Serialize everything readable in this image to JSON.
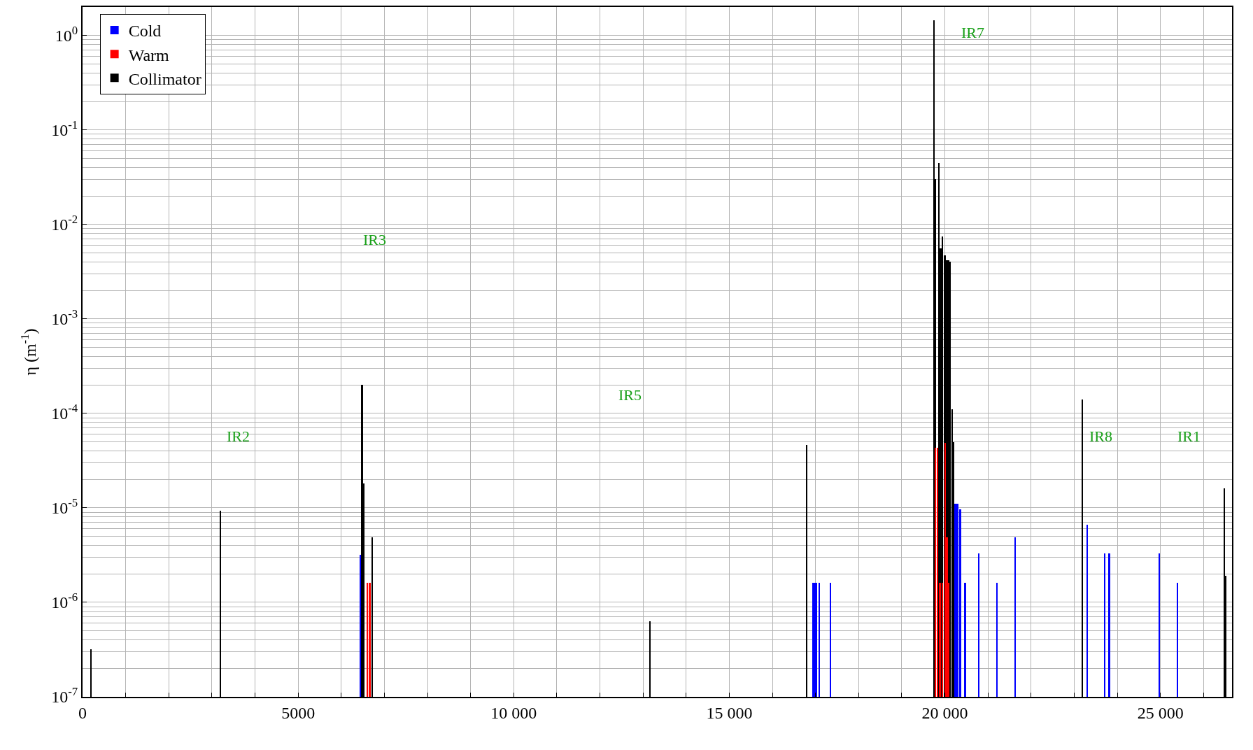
{
  "chart_data": {
    "type": "bar",
    "ylabel": "η (m$^{-1}$)",
    "log": "y",
    "grid": true,
    "legend": "top left",
    "xlim": [
      0,
      26659
    ],
    "ylim": [
      1e-07,
      2
    ],
    "xticks": [
      0,
      {
        "value": 1000,
        "label": null
      },
      {
        "value": 2000,
        "label": null
      },
      {
        "value": 3000,
        "label": null
      },
      {
        "value": 4000,
        "label": null
      },
      5000,
      {
        "value": 6000,
        "label": null
      },
      {
        "value": 7000,
        "label": null
      },
      {
        "value": 8000,
        "label": null
      },
      {
        "value": 9000,
        "label": null
      },
      {
        "value": 10000,
        "label": "10 000"
      },
      {
        "value": 11000,
        "label": null
      },
      {
        "value": 12000,
        "label": null
      },
      {
        "value": 13000,
        "label": null
      },
      {
        "value": 14000,
        "label": null
      },
      {
        "value": 15000,
        "label": "15 000"
      },
      {
        "value": 16000,
        "label": null
      },
      {
        "value": 17000,
        "label": null
      },
      {
        "value": 18000,
        "label": null
      },
      {
        "value": 19000,
        "label": null
      },
      {
        "value": 20000,
        "label": "20 000"
      },
      {
        "value": 21000,
        "label": null
      },
      {
        "value": 22000,
        "label": null
      },
      {
        "value": 23000,
        "label": null
      },
      {
        "value": 24000,
        "label": null
      },
      {
        "value": 25000,
        "label": "25 000"
      },
      {
        "value": 26000,
        "label": null
      }
    ],
    "yticks": [
      {
        "value": 1e-07,
        "label": "10$^{-7}$"
      },
      {
        "value": 1e-06,
        "label": "10$^{-6}$"
      },
      {
        "value": 1e-05,
        "label": "10$^{-5}$"
      },
      {
        "value": 0.0001,
        "label": "10$^{-4}$"
      },
      {
        "value": 0.001,
        "label": "10$^{-3}$"
      },
      {
        "value": 0.01,
        "label": "10$^{-2}$"
      },
      {
        "value": 0.1,
        "label": "10$^{-1}$"
      },
      {
        "value": 1,
        "label": "10$^{0}$"
      }
    ],
    "series": [
      {
        "name": "Cold",
        "color": "#0000ff",
        "x": [
          6447,
          16950,
          16984,
          17017,
          17091,
          17345,
          20245,
          20292,
          20358,
          20472,
          20792,
          21213,
          21634,
          23300,
          23705,
          23813,
          24975,
          25396
        ],
        "values": [
          3.2e-06,
          1.6e-06,
          1.6e-06,
          1.6e-06,
          1.6e-06,
          1.6e-06,
          1.1e-05,
          1.1e-05,
          9.7e-06,
          1.6e-06,
          3.3e-06,
          1.6e-06,
          4.9e-06,
          6.6e-06,
          3.3e-06,
          3.3e-06,
          3.3e-06,
          1.6e-06
        ]
      },
      {
        "name": "Warm",
        "color": "#ff0000",
        "x": [
          6612,
          6667,
          19780,
          19830,
          19890,
          19950,
          20010,
          20050,
          20090
        ],
        "values": [
          1.6e-06,
          1.6e-06,
          4.3e-05,
          4.3e-05,
          1.6e-06,
          1.6e-06,
          4.9e-05,
          4.9e-06,
          1.6e-06
        ]
      },
      {
        "name": "Collimator",
        "color": "#000000",
        "x": [
          200,
          3205,
          6484,
          6520,
          6722,
          13168,
          16795,
          19755,
          19787,
          19861,
          19904,
          19947,
          20000,
          20053,
          20085,
          20120,
          20172,
          20204,
          23187,
          26484,
          26520
        ],
        "values": [
          3.2e-07,
          9.3e-06,
          0.0002,
          1.8e-05,
          4.9e-06,
          6.3e-07,
          4.6e-05,
          1.45,
          0.03,
          0.045,
          0.0056,
          0.0075,
          0.0047,
          0.0042,
          0.0042,
          0.004,
          0.00011,
          5e-05,
          0.00014,
          1.6e-05,
          1.9e-06
        ]
      }
    ],
    "annotations": [
      "IR2",
      "IR3",
      "IR5",
      "IR7",
      "IR8",
      "IR1"
    ]
  }
}
